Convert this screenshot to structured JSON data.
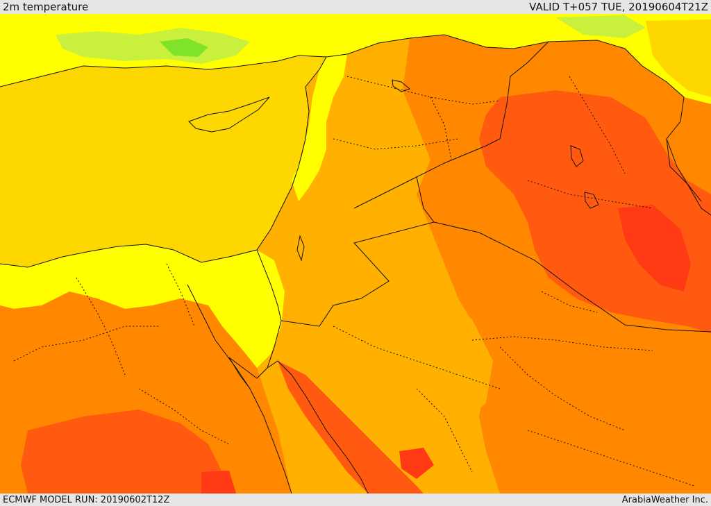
{
  "header": {
    "field_title": "2m temperature",
    "valid_time": "VALID T+057 TUE, 20190604T21Z"
  },
  "footer": {
    "model_run": "ECMWF MODEL RUN: 20190602T12Z",
    "credit": "ArabiaWeather Inc."
  },
  "colors": {
    "green": "#7fe32a",
    "light_green": "#c8f03c",
    "yellow": "#ffff00",
    "gold": "#ffd700",
    "amber": "#ffb000",
    "orange": "#ff8800",
    "deep_orange": "#ff5a10",
    "red_orange": "#ff3a14",
    "border": "#111111"
  }
}
